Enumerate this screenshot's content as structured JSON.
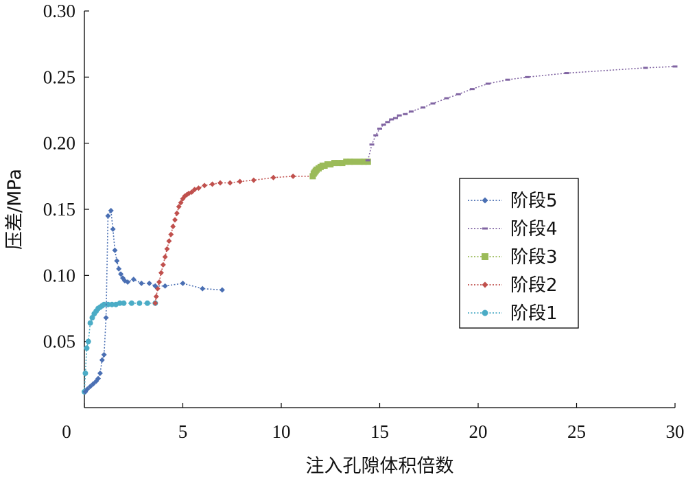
{
  "chart_data": {
    "type": "line",
    "title": "",
    "xlabel": "注入孔隙体积倍数",
    "ylabel": "压差/MPa",
    "xlim": [
      0,
      30
    ],
    "ylim": [
      0,
      0.3
    ],
    "x_ticks": [
      "0",
      "5",
      "10",
      "15",
      "20",
      "25",
      "30"
    ],
    "y_ticks": [
      "0.05",
      "0.10",
      "0.15",
      "0.20",
      "0.25",
      "0.30"
    ],
    "grid": false,
    "legend_position": "right",
    "series": [
      {
        "name": "阶段5",
        "color": "#4a6fb3",
        "marker": "diamond",
        "points": [
          [
            0.05,
            0.012
          ],
          [
            0.15,
            0.014
          ],
          [
            0.3,
            0.016
          ],
          [
            0.45,
            0.018
          ],
          [
            0.6,
            0.02
          ],
          [
            0.7,
            0.022
          ],
          [
            0.8,
            0.026
          ],
          [
            0.9,
            0.036
          ],
          [
            1.0,
            0.04
          ],
          [
            1.1,
            0.068
          ],
          [
            1.2,
            0.145
          ],
          [
            1.35,
            0.149
          ],
          [
            1.45,
            0.135
          ],
          [
            1.55,
            0.119
          ],
          [
            1.65,
            0.111
          ],
          [
            1.75,
            0.105
          ],
          [
            1.85,
            0.101
          ],
          [
            1.95,
            0.098
          ],
          [
            2.05,
            0.096
          ],
          [
            2.2,
            0.095
          ],
          [
            2.5,
            0.097
          ],
          [
            2.9,
            0.094
          ],
          [
            3.3,
            0.094
          ],
          [
            3.6,
            0.092
          ],
          [
            4.1,
            0.092
          ],
          [
            5.0,
            0.094
          ],
          [
            6.0,
            0.09
          ],
          [
            7.0,
            0.089
          ]
        ]
      },
      {
        "name": "阶段4",
        "color": "#8064a2",
        "marker": "dash",
        "points": [
          [
            14.4,
            0.187
          ],
          [
            14.6,
            0.199
          ],
          [
            14.8,
            0.206
          ],
          [
            15.0,
            0.211
          ],
          [
            15.2,
            0.214
          ],
          [
            15.4,
            0.216
          ],
          [
            15.6,
            0.218
          ],
          [
            15.8,
            0.219
          ],
          [
            16.0,
            0.221
          ],
          [
            16.3,
            0.222
          ],
          [
            16.6,
            0.224
          ],
          [
            17.2,
            0.227
          ],
          [
            17.7,
            0.23
          ],
          [
            18.4,
            0.234
          ],
          [
            19.0,
            0.237
          ],
          [
            19.7,
            0.241
          ],
          [
            20.5,
            0.245
          ],
          [
            21.5,
            0.248
          ],
          [
            22.5,
            0.25
          ],
          [
            24.5,
            0.253
          ],
          [
            28.5,
            0.257
          ],
          [
            30.0,
            0.258
          ]
        ]
      },
      {
        "name": "阶段3",
        "color": "#9bbb59",
        "marker": "square",
        "points": [
          [
            11.6,
            0.175
          ],
          [
            11.65,
            0.177
          ],
          [
            11.7,
            0.178
          ],
          [
            11.75,
            0.179
          ],
          [
            11.8,
            0.18
          ],
          [
            11.9,
            0.181
          ],
          [
            12.0,
            0.182
          ],
          [
            12.1,
            0.183
          ],
          [
            12.2,
            0.183
          ],
          [
            12.35,
            0.184
          ],
          [
            12.5,
            0.184
          ],
          [
            12.7,
            0.185
          ],
          [
            12.9,
            0.185
          ],
          [
            13.1,
            0.185
          ],
          [
            13.3,
            0.186
          ],
          [
            13.5,
            0.186
          ],
          [
            13.7,
            0.186
          ],
          [
            14.0,
            0.186
          ],
          [
            14.2,
            0.186
          ],
          [
            14.4,
            0.186
          ]
        ]
      },
      {
        "name": "阶段2",
        "color": "#c0504d",
        "marker": "diamond",
        "points": [
          [
            3.6,
            0.079
          ],
          [
            3.65,
            0.084
          ],
          [
            3.72,
            0.09
          ],
          [
            3.8,
            0.095
          ],
          [
            3.9,
            0.102
          ],
          [
            4.0,
            0.108
          ],
          [
            4.1,
            0.114
          ],
          [
            4.2,
            0.12
          ],
          [
            4.3,
            0.126
          ],
          [
            4.4,
            0.131
          ],
          [
            4.5,
            0.137
          ],
          [
            4.6,
            0.142
          ],
          [
            4.7,
            0.147
          ],
          [
            4.8,
            0.152
          ],
          [
            4.9,
            0.155
          ],
          [
            5.0,
            0.158
          ],
          [
            5.1,
            0.16
          ],
          [
            5.2,
            0.161
          ],
          [
            5.3,
            0.162
          ],
          [
            5.45,
            0.163
          ],
          [
            5.6,
            0.165
          ],
          [
            5.8,
            0.166
          ],
          [
            6.1,
            0.168
          ],
          [
            6.5,
            0.169
          ],
          [
            6.9,
            0.17
          ],
          [
            7.4,
            0.17
          ],
          [
            7.9,
            0.171
          ],
          [
            8.6,
            0.172
          ],
          [
            9.6,
            0.174
          ],
          [
            10.6,
            0.175
          ],
          [
            11.6,
            0.175
          ]
        ]
      },
      {
        "name": "阶段1",
        "color": "#4bacc6",
        "marker": "circle",
        "points": [
          [
            0.0,
            0.012
          ],
          [
            0.05,
            0.026
          ],
          [
            0.12,
            0.045
          ],
          [
            0.2,
            0.05
          ],
          [
            0.3,
            0.064
          ],
          [
            0.4,
            0.068
          ],
          [
            0.5,
            0.071
          ],
          [
            0.6,
            0.073
          ],
          [
            0.7,
            0.075
          ],
          [
            0.8,
            0.076
          ],
          [
            0.9,
            0.077
          ],
          [
            1.0,
            0.078
          ],
          [
            1.2,
            0.078
          ],
          [
            1.4,
            0.078
          ],
          [
            1.6,
            0.078
          ],
          [
            1.8,
            0.079
          ],
          [
            2.0,
            0.079
          ],
          [
            2.4,
            0.079
          ],
          [
            2.8,
            0.079
          ],
          [
            3.2,
            0.079
          ],
          [
            3.6,
            0.079
          ]
        ]
      }
    ]
  }
}
